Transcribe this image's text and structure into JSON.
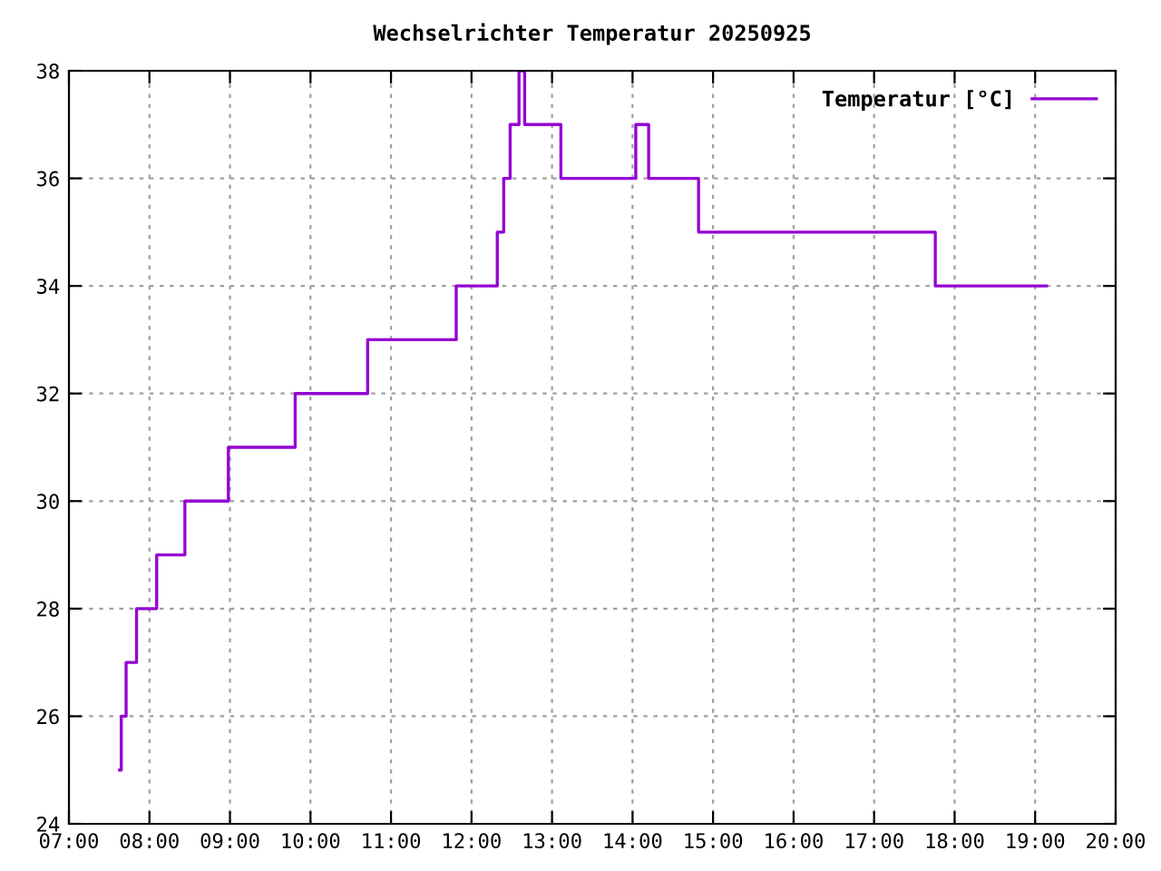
{
  "chart_data": {
    "type": "step",
    "title": "Wechselrichter Temperatur 20250925",
    "x": [
      7.63,
      7.65,
      7.71,
      7.84,
      8.09,
      8.44,
      8.98,
      9.81,
      10.71,
      11.81,
      12.32,
      12.4,
      12.48,
      12.59,
      12.66,
      13.11,
      14.04,
      14.2,
      14.82,
      17.76,
      19.14
    ],
    "series": [
      {
        "name": "Temperatur [°C]",
        "color": "#9400d3",
        "values": [
          25,
          26,
          27,
          28,
          29,
          30,
          31,
          32,
          33,
          34,
          35,
          36,
          37,
          38,
          37,
          36,
          37,
          36,
          35,
          34,
          34
        ]
      }
    ],
    "xlim": [
      7,
      20
    ],
    "xticks": [
      {
        "value": 7,
        "label": "07:00"
      },
      {
        "value": 8,
        "label": "08:00"
      },
      {
        "value": 9,
        "label": "09:00"
      },
      {
        "value": 10,
        "label": "10:00"
      },
      {
        "value": 11,
        "label": "11:00"
      },
      {
        "value": 12,
        "label": "12:00"
      },
      {
        "value": 13,
        "label": "13:00"
      },
      {
        "value": 14,
        "label": "14:00"
      },
      {
        "value": 15,
        "label": "15:00"
      },
      {
        "value": 16,
        "label": "16:00"
      },
      {
        "value": 17,
        "label": "17:00"
      },
      {
        "value": 18,
        "label": "18:00"
      },
      {
        "value": 19,
        "label": "19:00"
      },
      {
        "value": 20,
        "label": "20:00"
      }
    ],
    "ylim": [
      24,
      38
    ],
    "yticks": [
      24,
      26,
      28,
      30,
      32,
      34,
      36,
      38
    ],
    "grid": true,
    "legend": "top right",
    "line_style": "solid"
  }
}
